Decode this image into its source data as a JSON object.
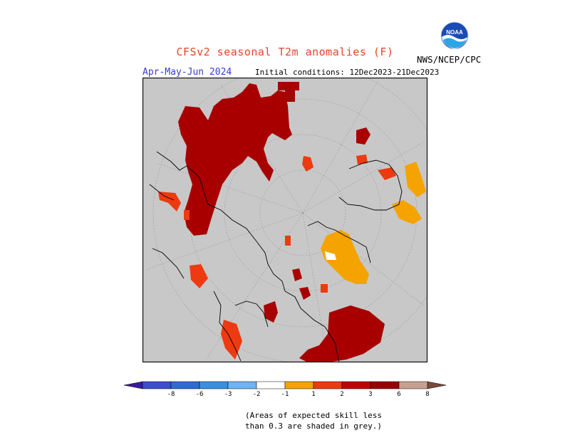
{
  "header": {
    "title": "CFSv2 seasonal T2m anomalies (F)",
    "season": "Apr-May-Jun 2024",
    "initial_conditions": "Initial conditions: 12Dec2023-21Dec2023",
    "agency": "NWS/NCEP/CPC",
    "logo_text": "NOAA"
  },
  "colorbar": {
    "labels": [
      "-8",
      "-6",
      "-3",
      "-2",
      "-1",
      "1",
      "2",
      "3",
      "6",
      "8"
    ],
    "colors": [
      "#3a1aa0",
      "#3a4ccf",
      "#2f6bd6",
      "#3b8fe3",
      "#6fb4f2",
      "#ffffff",
      "#f5a300",
      "#ee3a10",
      "#c20000",
      "#9a0000",
      "#c8a08e",
      "#7a4a3a"
    ]
  },
  "note": {
    "line1": "(Areas of expected skill less",
    "line2": "than 0.3 are shaded in grey.)"
  },
  "colors": {
    "grey": "#c8c8c8",
    "dark_red": "#a80000",
    "red": "#ee3a10",
    "orange": "#f5a300",
    "white": "#ffffff"
  }
}
